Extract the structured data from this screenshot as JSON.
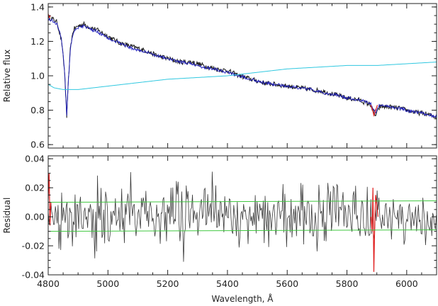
{
  "chart_data": [
    {
      "type": "line",
      "panel": "top",
      "title": "",
      "xlabel": "",
      "ylabel": "Relative flux",
      "xlim": [
        4800,
        6100
      ],
      "ylim": [
        0.58,
        1.42
      ],
      "xticks": [
        4800,
        5000,
        5200,
        5400,
        5600,
        5800,
        6000
      ],
      "xtick_labels": [
        "",
        "",
        "",
        "",
        "",
        "",
        ""
      ],
      "yticks": [
        0.6,
        0.8,
        1.0,
        1.2,
        1.4
      ],
      "ytick_labels": [
        "0.6",
        "0.8",
        "1.0",
        "1.2",
        "1.4"
      ],
      "grid": false,
      "series": [
        {
          "role": "observed",
          "color": "#1a1a1a",
          "x": [
            4800,
            4815,
            4830,
            4845,
            4855,
            4862,
            4868,
            4875,
            4885,
            4900,
            4920,
            4940,
            4960,
            4980,
            5000,
            5040,
            5080,
            5120,
            5160,
            5200,
            5240,
            5280,
            5320,
            5360,
            5400,
            5440,
            5480,
            5520,
            5560,
            5600,
            5640,
            5680,
            5720,
            5760,
            5800,
            5840,
            5880,
            5890,
            5896,
            5910,
            5940,
            5980,
            6020,
            6060,
            6100
          ],
          "y": [
            1.34,
            1.33,
            1.31,
            1.2,
            1.02,
            0.76,
            0.98,
            1.18,
            1.27,
            1.29,
            1.3,
            1.28,
            1.27,
            1.25,
            1.23,
            1.19,
            1.17,
            1.15,
            1.12,
            1.1,
            1.08,
            1.08,
            1.06,
            1.04,
            1.03,
            1.0,
            0.98,
            0.96,
            0.95,
            0.94,
            0.93,
            0.92,
            0.91,
            0.89,
            0.87,
            0.86,
            0.83,
            0.78,
            0.77,
            0.82,
            0.82,
            0.81,
            0.79,
            0.78,
            0.76
          ]
        },
        {
          "role": "model",
          "color": "#2020c0",
          "x": [
            4800,
            4815,
            4830,
            4845,
            4855,
            4862,
            4868,
            4875,
            4885,
            4900,
            4920,
            4940,
            4960,
            4980,
            5000,
            5040,
            5080,
            5120,
            5160,
            5200,
            5240,
            5280,
            5320,
            5360,
            5400,
            5440,
            5480,
            5520,
            5560,
            5600,
            5640,
            5680,
            5720,
            5760,
            5800,
            5840,
            5880,
            5890,
            5896,
            5910,
            5940,
            5980,
            6020,
            6060,
            6100
          ],
          "y": [
            1.33,
            1.32,
            1.3,
            1.21,
            1.03,
            0.77,
            0.99,
            1.17,
            1.26,
            1.28,
            1.29,
            1.27,
            1.26,
            1.24,
            1.22,
            1.19,
            1.16,
            1.14,
            1.12,
            1.1,
            1.08,
            1.07,
            1.05,
            1.04,
            1.02,
            1.0,
            0.98,
            0.96,
            0.95,
            0.94,
            0.93,
            0.92,
            0.9,
            0.89,
            0.87,
            0.86,
            0.84,
            0.8,
            0.79,
            0.83,
            0.82,
            0.81,
            0.79,
            0.78,
            0.76
          ]
        },
        {
          "role": "masked-regions",
          "color": "#e02020",
          "segments": [
            {
              "x": [
                4800,
                4804,
                4808
              ],
              "y": [
                1.36,
                1.34,
                1.35
              ]
            },
            {
              "x": [
                5880,
                5886,
                5890,
                5894,
                5898,
                5902
              ],
              "y": [
                0.83,
                0.8,
                0.77,
                0.79,
                0.81,
                0.83
              ]
            }
          ]
        },
        {
          "role": "continuum",
          "color": "#30c8e0",
          "x": [
            4800,
            4820,
            4850,
            4900,
            5000,
            5100,
            5200,
            5300,
            5400,
            5500,
            5600,
            5700,
            5800,
            5900,
            6000,
            6100
          ],
          "y": [
            0.95,
            0.93,
            0.92,
            0.92,
            0.94,
            0.96,
            0.98,
            0.99,
            1.0,
            1.02,
            1.04,
            1.05,
            1.06,
            1.06,
            1.07,
            1.08
          ]
        }
      ]
    },
    {
      "type": "line",
      "panel": "bottom",
      "title": "",
      "xlabel": "Wavelength, Å",
      "ylabel": "Residual",
      "xlim": [
        4800,
        6100
      ],
      "ylim": [
        -0.04,
        0.042
      ],
      "xticks": [
        4800,
        5000,
        5200,
        5400,
        5600,
        5800,
        6000
      ],
      "xtick_labels": [
        "4800",
        "5000",
        "5200",
        "5400",
        "5600",
        "5800",
        "6000"
      ],
      "yticks": [
        -0.04,
        -0.02,
        0.0,
        0.02,
        0.04
      ],
      "ytick_labels": [
        "-0.04",
        "-0.02",
        "0.00",
        "0.02",
        "0.04"
      ],
      "grid": false,
      "series": [
        {
          "role": "residual",
          "color": "#3a3a3a",
          "x_step": 3,
          "amplitude": 0.013
        },
        {
          "role": "masked-residual",
          "color": "#e02020",
          "segments": [
            {
              "x": [
                4800,
                4803,
                4806,
                4809
              ],
              "y": [
                0.012,
                0.03,
                -0.006,
                0.01
              ]
            },
            {
              "x": [
                5880,
                5884,
                5887,
                5890,
                5893,
                5896,
                5900,
                5904
              ],
              "y": [
                0.0,
                -0.01,
                0.02,
                -0.038,
                -0.005,
                0.015,
                0.008,
                0.0
              ]
            }
          ]
        },
        {
          "role": "upper-limit",
          "color": "#40c840",
          "x": [
            4800,
            6100
          ],
          "y": [
            0.01,
            0.011
          ]
        },
        {
          "role": "lower-limit",
          "color": "#40c840",
          "x": [
            4800,
            6100
          ],
          "y": [
            -0.01,
            -0.009
          ]
        }
      ]
    }
  ]
}
